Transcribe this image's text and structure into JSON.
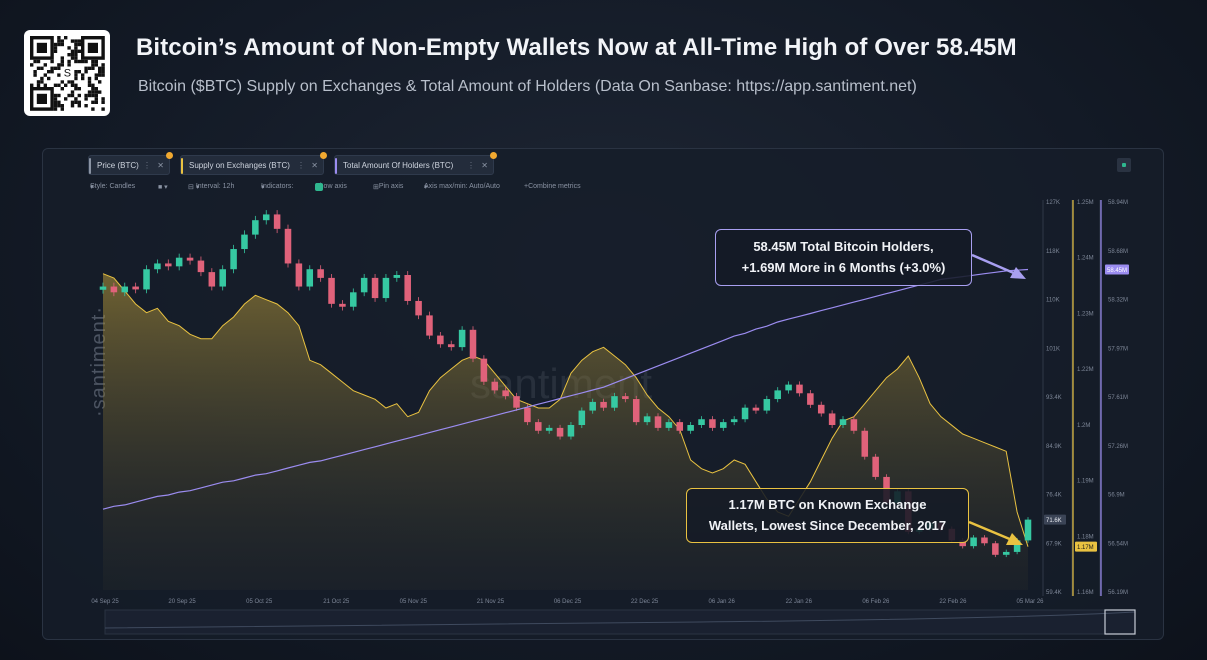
{
  "header": {
    "title": "Bitcoin’s Amount of Non-Empty Wallets Now at All-Time High of Over 58.45M",
    "subtitle": "Bitcoin ($BTC) Supply on Exchanges & Total Amount of Holders (Data On Sanbase: https://app.santiment.net)"
  },
  "tabs": [
    {
      "label": "Price (BTC)",
      "color": "#8a93a3"
    },
    {
      "label": "Supply on Exchanges (BTC)",
      "color": "#e9c241"
    },
    {
      "label": "Total Amount Of Holders (BTC)",
      "color": "#9b8cf0"
    }
  ],
  "toolbar": {
    "style": "Style: Candles",
    "interval": "Interval: 12h",
    "indicators": "Indicators:",
    "show_axis": "Show axis",
    "pin_axis": "Pin axis",
    "axis_minmax": "Axis max/min: Auto/Auto",
    "combine": "Combine metrics"
  },
  "watermark": {
    "side": "·santiment·",
    "mid": "santiment"
  },
  "callouts": {
    "holders_line1": "58.45M Total Bitcoin Holders,",
    "holders_line2": "+1.69M More in 6 Months (+3.0%)",
    "exchange_line1": "1.17M BTC on Known Exchange",
    "exchange_line2": "Wallets, Lowest Since December, 2017"
  },
  "chart_data": {
    "type": "line",
    "x_ticks": [
      "04 Sep 25",
      "20 Sep 25",
      "05 Oct 25",
      "21 Oct 25",
      "05 Nov 25",
      "21 Nov 25",
      "06 Dec 25",
      "22 Dec 25",
      "06 Jan 26",
      "22 Jan 26",
      "06 Feb 26",
      "22 Feb 26",
      "05 Mar 26"
    ],
    "axes": {
      "price": {
        "ticks": [
          "127K",
          "118K",
          "110K",
          "101K",
          "93.4K",
          "84.9K",
          "76.4K",
          "67.9K",
          "59.4K"
        ],
        "current_label": "71.6K",
        "range": [
          59400,
          127000
        ]
      },
      "supply": {
        "ticks": [
          "1.25M",
          "1.24M",
          "1.23M",
          "1.22M",
          "1.2M",
          "1.19M",
          "1.18M",
          "1.16M"
        ],
        "current_label": "1.17M",
        "range": [
          1160000,
          1250000
        ]
      },
      "holders": {
        "ticks": [
          "58.94M",
          "58.68M",
          "58.32M",
          "57.97M",
          "57.61M",
          "57.26M",
          "56.9M",
          "56.54M",
          "56.19M"
        ],
        "current_label": "58.45M",
        "range": [
          56190000,
          58940000
        ]
      }
    },
    "series": [
      {
        "name": "Price (BTC)",
        "style": "candles",
        "up_color": "#36c9a2",
        "down_color": "#e0627a",
        "values": [
          112000,
          111000,
          112000,
          111500,
          115000,
          116000,
          115500,
          117000,
          116500,
          114500,
          112000,
          115000,
          118500,
          121000,
          123500,
          124500,
          122000,
          116000,
          112000,
          115000,
          113500,
          109000,
          108500,
          111000,
          113500,
          110000,
          113500,
          114000,
          109500,
          107000,
          103500,
          102000,
          101500,
          104500,
          99500,
          95500,
          94000,
          93000,
          91000,
          88500,
          87000,
          87500,
          86000,
          88000,
          90500,
          92000,
          91000,
          93000,
          92500,
          88500,
          89500,
          87500,
          88500,
          87000,
          88000,
          89000,
          87500,
          88500,
          89000,
          91000,
          90500,
          92500,
          94000,
          95000,
          93500,
          91500,
          90000,
          88000,
          89000,
          87000,
          82500,
          79000,
          74500,
          76500,
          69500,
          70000,
          71000,
          70000,
          68000,
          67000,
          68500,
          67500,
          65500,
          66000,
          68000,
          71600
        ]
      },
      {
        "name": "Supply on Exchanges (BTC)",
        "style": "area",
        "color": "#e9c241",
        "values": [
          1233000,
          1232000,
          1229000,
          1226000,
          1224000,
          1225000,
          1222000,
          1221000,
          1219000,
          1218000,
          1218000,
          1221000,
          1223000,
          1226000,
          1228000,
          1227000,
          1226000,
          1224000,
          1221000,
          1213000,
          1212000,
          1210000,
          1208000,
          1206000,
          1205000,
          1204000,
          1202000,
          1203000,
          1200000,
          1201000,
          1206000,
          1209000,
          1211000,
          1213000,
          1214000,
          1213000,
          1210000,
          1207000,
          1204000,
          1203000,
          1202000,
          1202000,
          1204000,
          1210000,
          1213000,
          1215000,
          1216000,
          1214000,
          1212000,
          1209000,
          1205000,
          1202000,
          1200000,
          1197000,
          1190000,
          1188000,
          1187000,
          1188000,
          1190000,
          1189000,
          1185000,
          1181000,
          1178000,
          1177000,
          1181000,
          1185000,
          1190000,
          1195000,
          1199000,
          1200000,
          1203000,
          1206000,
          1209000,
          1211000,
          1214000,
          1209000,
          1203000,
          1200000,
          1198000,
          1196000,
          1195000,
          1194000,
          1193000,
          1192000,
          1178000,
          1170000
        ]
      },
      {
        "name": "Total Amount Of Holders (BTC)",
        "style": "line",
        "color": "#9b8cf0",
        "values": [
          56760000,
          56780000,
          56790000,
          56810000,
          56830000,
          56850000,
          56860000,
          56880000,
          56890000,
          56910000,
          56930000,
          56950000,
          56960000,
          56980000,
          57000000,
          57010000,
          57030000,
          57050000,
          57070000,
          57090000,
          57100000,
          57120000,
          57140000,
          57160000,
          57180000,
          57200000,
          57220000,
          57240000,
          57260000,
          57280000,
          57300000,
          57320000,
          57340000,
          57360000,
          57380000,
          57400000,
          57420000,
          57440000,
          57460000,
          57480000,
          57500000,
          57520000,
          57540000,
          57560000,
          57580000,
          57600000,
          57620000,
          57650000,
          57680000,
          57710000,
          57740000,
          57770000,
          57800000,
          57830000,
          57860000,
          57890000,
          57920000,
          57950000,
          57980000,
          58000000,
          58030000,
          58050000,
          58080000,
          58100000,
          58120000,
          58140000,
          58160000,
          58180000,
          58200000,
          58220000,
          58240000,
          58260000,
          58280000,
          58300000,
          58320000,
          58340000,
          58360000,
          58380000,
          58390000,
          58400000,
          58410000,
          58420000,
          58430000,
          58440000,
          58445000,
          58450000
        ]
      }
    ]
  }
}
